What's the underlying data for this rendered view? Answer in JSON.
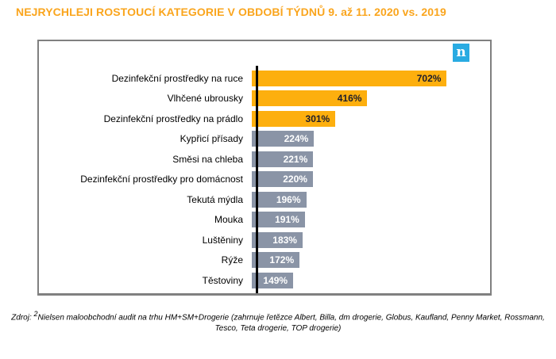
{
  "header": {
    "title": "NEJRYCHLEJI ROSTOUCÍ KATEGORIE V OBDOBÍ TÝDNŮ 9. až 11. 2020 vs. 2019"
  },
  "logo": {
    "letter": "n"
  },
  "colors": {
    "title_orange": "#FAA51D",
    "bar_highlight": "#FDAF0E",
    "bar_default": "#8A94A6",
    "value_on_highlight": "#1D1D2B",
    "value_on_default": "#FFFFFF",
    "logo_blue": "#29ABE2",
    "border_gray": "#808080",
    "axis_black": "#000000"
  },
  "chart_data": {
    "type": "bar",
    "orientation": "horizontal",
    "title": "NEJRYCHLEJI ROSTOUCÍ KATEGORIE V OBDOBÍ TÝDNŮ 9. až 11. 2020 vs. 2019",
    "categories": [
      "Dezinfekční prostředky na ruce",
      "Vlhčené ubrousky",
      "Dezinfekční prostředky na prádlo",
      "Kypřicí přísady",
      "Směsi na chleba",
      "Dezinfekční prostředky pro domácnost",
      "Tekutá mýdla",
      "Mouka",
      "Luštěniny",
      "Rýže",
      "Těstoviny"
    ],
    "values": [
      702,
      416,
      301,
      224,
      221,
      220,
      196,
      191,
      183,
      172,
      149
    ],
    "value_labels": [
      "702%",
      "416%",
      "301%",
      "224%",
      "221%",
      "220%",
      "196%",
      "191%",
      "183%",
      "172%",
      "149%"
    ],
    "highlighted_count": 3,
    "unit": "%",
    "xlim": [
      0,
      858
    ],
    "grid": false,
    "legend": false,
    "value_label_position": "inside-right",
    "category_label_position": "left"
  },
  "footer": {
    "source_label": "Zdroj:",
    "footnote_marker": "2",
    "source_text": "Nielsen maloobchodní audit na trhu HM+SM+Drogerie (zahrnuje řetězce Albert, Billa, dm drogerie, Globus, Kaufland, Penny Market, Rossmann, Tesco, Teta drogerie, TOP drogerie)"
  }
}
